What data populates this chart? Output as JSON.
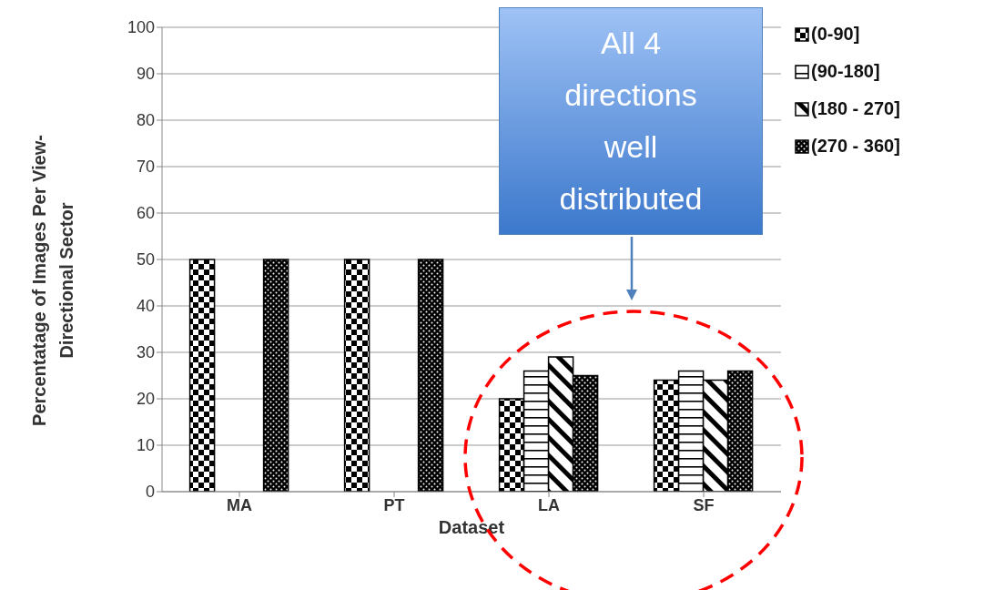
{
  "chart_data": {
    "type": "bar",
    "xlabel": "Dataset",
    "ylabel": "Percentatage of Images Per View-Directional Sector",
    "categories": [
      "MA",
      "PT",
      "LA",
      "SF"
    ],
    "series": [
      {
        "name": "(0-90]",
        "color": "#000000",
        "values": [
          50,
          50,
          20,
          24
        ]
      },
      {
        "name": "(90-180]",
        "color": "#000000",
        "values": [
          0,
          0,
          26,
          26
        ]
      },
      {
        "name": "(180 - 270]",
        "color": "#000000",
        "values": [
          0,
          0,
          29,
          24
        ]
      },
      {
        "name": "(270 - 360]",
        "color": "#000000",
        "values": [
          50,
          50,
          25,
          26
        ]
      }
    ],
    "ylim": [
      0,
      100
    ],
    "yticks": [
      0,
      10,
      20,
      30,
      40,
      50,
      60,
      70,
      80,
      90,
      100
    ],
    "grid": "y",
    "legend": "top right",
    "annotations": [
      "All 4 directions well distributed"
    ]
  }
}
